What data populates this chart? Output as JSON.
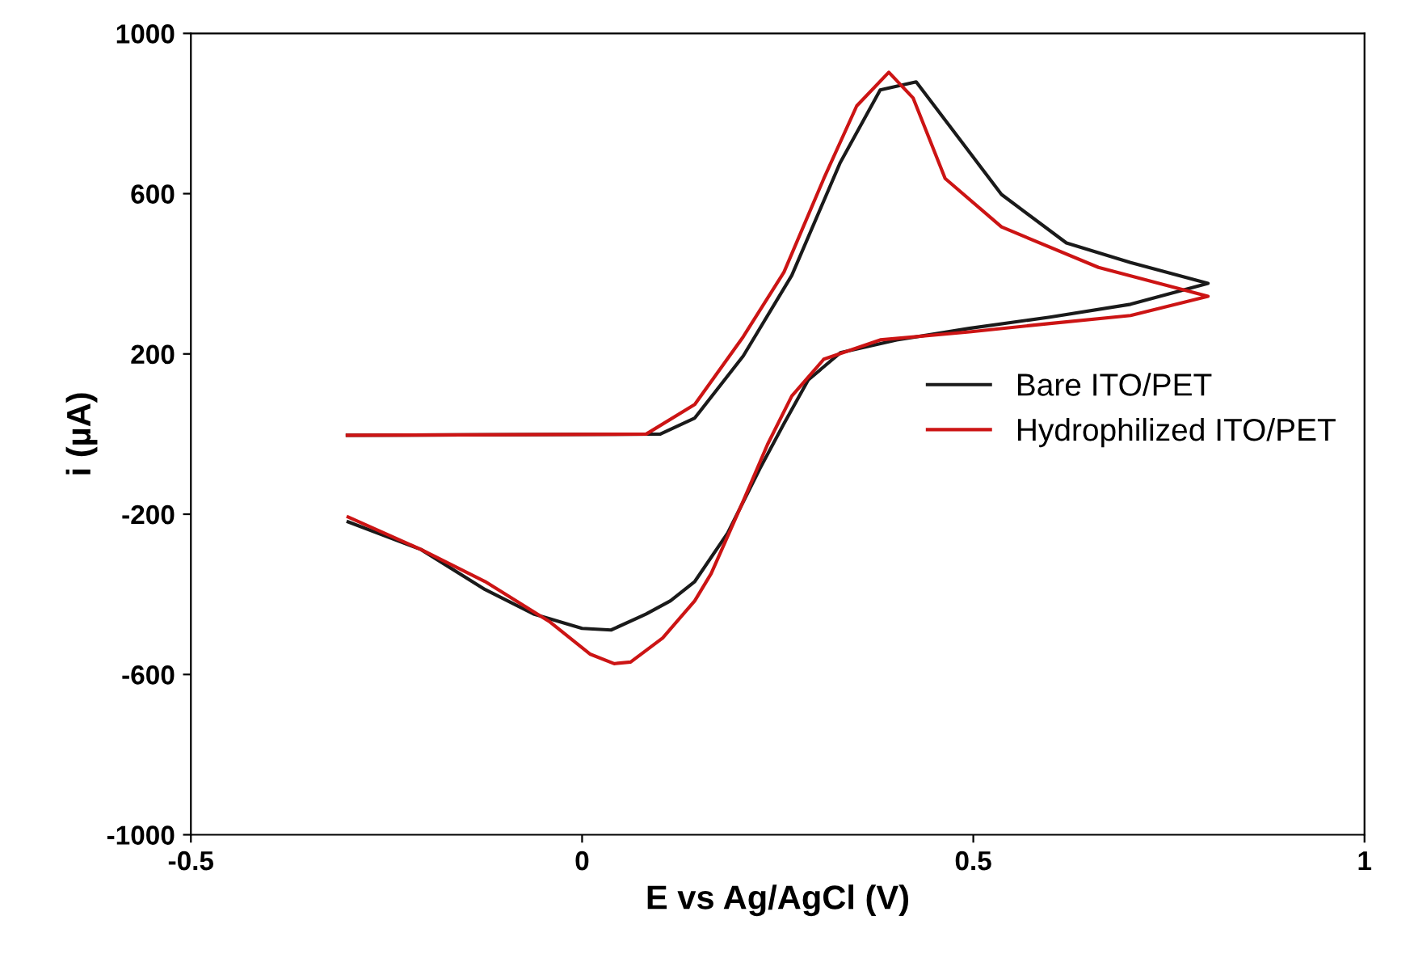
{
  "chart_data": {
    "type": "line",
    "xlabel": "E vs Ag/AgCl (V)",
    "ylabel": "i (µA)",
    "xlim": [
      -0.5,
      1
    ],
    "xticks": [
      -0.5,
      0,
      0.5,
      1
    ],
    "ylim": [
      -1000,
      1000
    ],
    "yticks": [
      -1000,
      -600,
      -200,
      200,
      600,
      1000
    ],
    "grid": false,
    "legend": "right",
    "marker": "none",
    "line_style": "solid",
    "series": [
      {
        "name": "Bare ITO/PET",
        "color": "#1a1a1a",
        "x": [
          -0.3,
          0.1,
          0.144,
          0.206,
          0.268,
          0.33,
          0.381,
          0.427,
          0.474,
          0.536,
          0.619,
          0.701,
          0.8,
          0.701,
          0.598,
          0.495,
          0.402,
          0.33,
          0.289,
          0.258,
          0.227,
          0.186,
          0.144,
          0.113,
          0.082,
          0.037,
          0.0,
          -0.062,
          -0.124,
          -0.206,
          -0.299
        ],
        "values": [
          -3,
          0,
          40,
          195,
          396,
          678,
          859,
          879,
          758,
          598,
          477,
          428,
          376,
          324,
          292,
          264,
          235,
          203,
          135,
          26,
          -87,
          -247,
          -368,
          -416,
          -449,
          -489,
          -485,
          -449,
          -388,
          -288,
          -219
        ]
      },
      {
        "name": "Hydrophilized ITO/PET",
        "color": "#cc1414",
        "x": [
          -0.3,
          0.082,
          0.144,
          0.206,
          0.258,
          0.309,
          0.351,
          0.392,
          0.423,
          0.464,
          0.536,
          0.66,
          0.8,
          0.701,
          0.598,
          0.495,
          0.381,
          0.309,
          0.268,
          0.237,
          0.206,
          0.165,
          0.144,
          0.103,
          0.062,
          0.041,
          0.01,
          -0.041,
          -0.124,
          -0.206,
          -0.299
        ],
        "values": [
          -3,
          0,
          74,
          243,
          404,
          638,
          819,
          903,
          839,
          638,
          517,
          416,
          344,
          296,
          276,
          255,
          235,
          187,
          95,
          -26,
          -167,
          -348,
          -416,
          -509,
          -569,
          -573,
          -549,
          -469,
          -368,
          -288,
          -207
        ]
      }
    ]
  }
}
